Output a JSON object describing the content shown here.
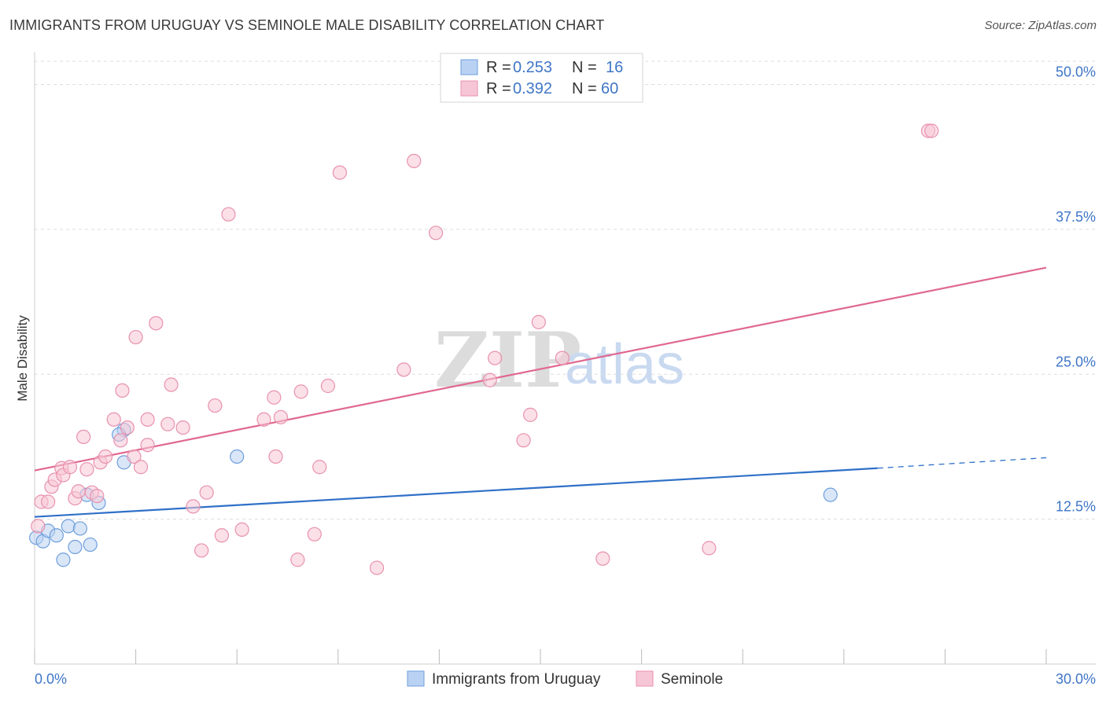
{
  "title": "IMMIGRANTS FROM URUGUAY VS SEMINOLE MALE DISABILITY CORRELATION CHART",
  "source": "Source: ZipAtlas.com",
  "watermark": {
    "zip": "ZIP",
    "atlas": "atlas"
  },
  "colors": {
    "blue_fill": "#b9d2f3",
    "blue_stroke": "#6f9fdc",
    "blue_line": "#2f70c8",
    "pink_fill": "#f7c6d6",
    "pink_stroke": "#e891ae",
    "pink_line": "#e06890",
    "grid": "#dddddd",
    "tick_text": "#3f76c7"
  },
  "legend": {
    "rows": [
      {
        "series": "blue",
        "r_label": "R =",
        "r_value": "0.253",
        "n_label": "N =",
        "n_value": "16"
      },
      {
        "series": "pink",
        "r_label": "R =",
        "r_value": "0.392",
        "n_label": "N =",
        "n_value": "60"
      }
    ]
  },
  "chart_data": {
    "type": "scatter",
    "title": "IMMIGRANTS FROM URUGUAY VS SEMINOLE MALE DISABILITY CORRELATION CHART",
    "xlabel": "",
    "ylabel": "Male Disability",
    "xlim": [
      0,
      30
    ],
    "ylim": [
      0,
      52
    ],
    "x_tick_labels": [
      "0.0%",
      "30.0%"
    ],
    "y_ticks": [
      12.5,
      25.0,
      37.5,
      50.0
    ],
    "y_tick_labels": [
      "12.5%",
      "25.0%",
      "37.5%",
      "50.0%"
    ],
    "grid": true,
    "series": [
      {
        "name": "Immigrants from Uruguay",
        "color": "blue",
        "points": [
          [
            0.05,
            10.9
          ],
          [
            0.25,
            10.6
          ],
          [
            0.4,
            11.5
          ],
          [
            0.65,
            11.1
          ],
          [
            0.85,
            9.0
          ],
          [
            1.0,
            11.9
          ],
          [
            1.2,
            10.1
          ],
          [
            1.35,
            11.7
          ],
          [
            1.65,
            10.3
          ],
          [
            1.55,
            14.6
          ],
          [
            1.9,
            13.9
          ],
          [
            2.65,
            20.2
          ],
          [
            2.5,
            19.8
          ],
          [
            2.65,
            17.4
          ],
          [
            6.0,
            17.9
          ],
          [
            23.6,
            14.6
          ]
        ],
        "trend": {
          "x_start": 0,
          "y_start": 12.7,
          "x_solid_end": 25.0,
          "y_solid_end": 16.9,
          "x_dash_end": 30,
          "y_dash_end": 17.8
        }
      },
      {
        "name": "Seminole",
        "color": "pink",
        "points": [
          [
            0.1,
            11.9
          ],
          [
            0.2,
            14.0
          ],
          [
            0.4,
            14.0
          ],
          [
            0.5,
            15.3
          ],
          [
            0.6,
            15.9
          ],
          [
            0.8,
            16.9
          ],
          [
            0.85,
            16.3
          ],
          [
            1.05,
            17.0
          ],
          [
            1.2,
            14.3
          ],
          [
            1.3,
            14.9
          ],
          [
            1.45,
            19.6
          ],
          [
            1.55,
            16.8
          ],
          [
            1.7,
            14.8
          ],
          [
            1.85,
            14.5
          ],
          [
            1.95,
            17.4
          ],
          [
            2.1,
            17.9
          ],
          [
            2.35,
            21.1
          ],
          [
            2.55,
            19.3
          ],
          [
            2.6,
            23.6
          ],
          [
            2.75,
            20.4
          ],
          [
            2.95,
            17.9
          ],
          [
            3.0,
            28.2
          ],
          [
            3.15,
            17.0
          ],
          [
            3.35,
            21.1
          ],
          [
            3.35,
            18.9
          ],
          [
            3.6,
            29.4
          ],
          [
            3.95,
            20.7
          ],
          [
            4.05,
            24.1
          ],
          [
            4.4,
            20.4
          ],
          [
            4.7,
            13.6
          ],
          [
            4.95,
            9.8
          ],
          [
            5.1,
            14.8
          ],
          [
            5.35,
            22.3
          ],
          [
            5.55,
            11.1
          ],
          [
            5.75,
            38.8
          ],
          [
            6.15,
            11.6
          ],
          [
            6.8,
            21.1
          ],
          [
            7.1,
            23.0
          ],
          [
            7.15,
            17.9
          ],
          [
            7.3,
            21.3
          ],
          [
            7.8,
            9.0
          ],
          [
            7.9,
            23.5
          ],
          [
            8.3,
            11.2
          ],
          [
            8.45,
            17.0
          ],
          [
            8.7,
            24.0
          ],
          [
            9.05,
            42.4
          ],
          [
            10.15,
            8.3
          ],
          [
            10.95,
            25.4
          ],
          [
            11.25,
            43.4
          ],
          [
            11.9,
            37.2
          ],
          [
            13.5,
            24.5
          ],
          [
            13.65,
            26.4
          ],
          [
            14.5,
            19.3
          ],
          [
            14.7,
            21.5
          ],
          [
            14.95,
            29.5
          ],
          [
            15.65,
            26.4
          ],
          [
            16.85,
            9.1
          ],
          [
            20.0,
            10.0
          ],
          [
            26.5,
            46.0
          ],
          [
            26.6,
            46.0
          ]
        ],
        "trend": {
          "x_start": 0,
          "y_start": 16.7,
          "x_end": 30,
          "y_end": 34.2
        }
      }
    ]
  },
  "bottom_legend": [
    {
      "series": "blue",
      "label": "Immigrants from Uruguay"
    },
    {
      "series": "pink",
      "label": "Seminole"
    }
  ]
}
